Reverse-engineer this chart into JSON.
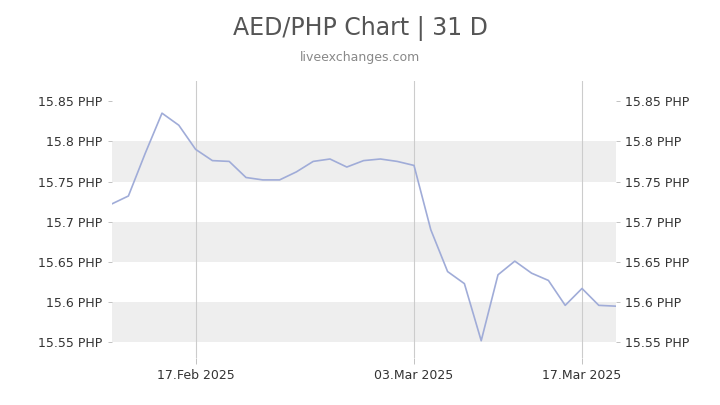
{
  "title": "AED/PHP Chart | 31 D",
  "subtitle": "liveexchanges.com",
  "ylim": [
    15.53,
    15.875
  ],
  "yticks": [
    15.55,
    15.6,
    15.65,
    15.7,
    15.75,
    15.8,
    15.85
  ],
  "ytick_labels": [
    "15.55 PHP",
    "15.6 PHP",
    "15.65 PHP",
    "15.7 PHP",
    "15.75 PHP",
    "15.8 PHP",
    "15.85 PHP"
  ],
  "xtick_labels": [
    "17.Feb 2025",
    "03.Mar 2025",
    "17.Mar 2025"
  ],
  "line_color": "#a0acd8",
  "background_color": "#ffffff",
  "band_color": "#eeeeee",
  "vline_color": "#cccccc",
  "title_fontsize": 17,
  "subtitle_fontsize": 9,
  "tick_fontsize": 9,
  "x_data": [
    0,
    1,
    2,
    3,
    4,
    5,
    6,
    7,
    8,
    9,
    10,
    11,
    12,
    13,
    14,
    15,
    16,
    17,
    18,
    19,
    20,
    21,
    22,
    23,
    24,
    25,
    26,
    27,
    28,
    29,
    30
  ],
  "y_data": [
    15.722,
    15.732,
    15.785,
    15.835,
    15.82,
    15.79,
    15.776,
    15.775,
    15.755,
    15.752,
    15.752,
    15.762,
    15.775,
    15.778,
    15.768,
    15.776,
    15.778,
    15.775,
    15.77,
    15.69,
    15.638,
    15.623,
    15.552,
    15.634,
    15.651,
    15.636,
    15.627,
    15.596,
    15.617,
    15.596,
    15.595
  ],
  "xtick_positions": [
    5,
    18,
    28
  ],
  "xlim": [
    0,
    30
  ]
}
